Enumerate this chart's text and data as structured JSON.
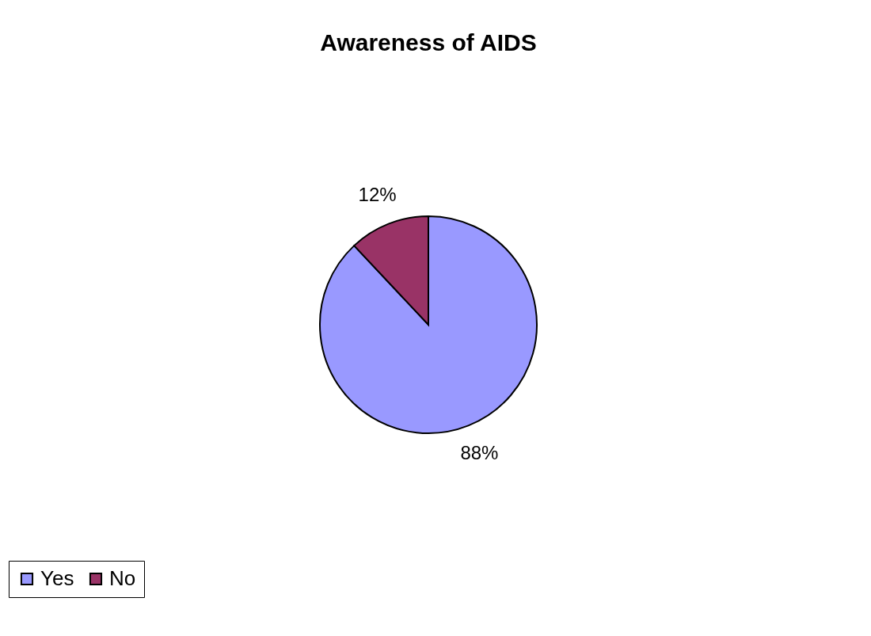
{
  "chart_data": {
    "type": "pie",
    "title": "Awareness of AIDS",
    "categories": [
      "Yes",
      "No"
    ],
    "values": [
      88,
      12
    ],
    "colors": [
      "#9999ff",
      "#993366"
    ],
    "value_labels": [
      "88%",
      "12%"
    ],
    "legend": "bottom"
  }
}
